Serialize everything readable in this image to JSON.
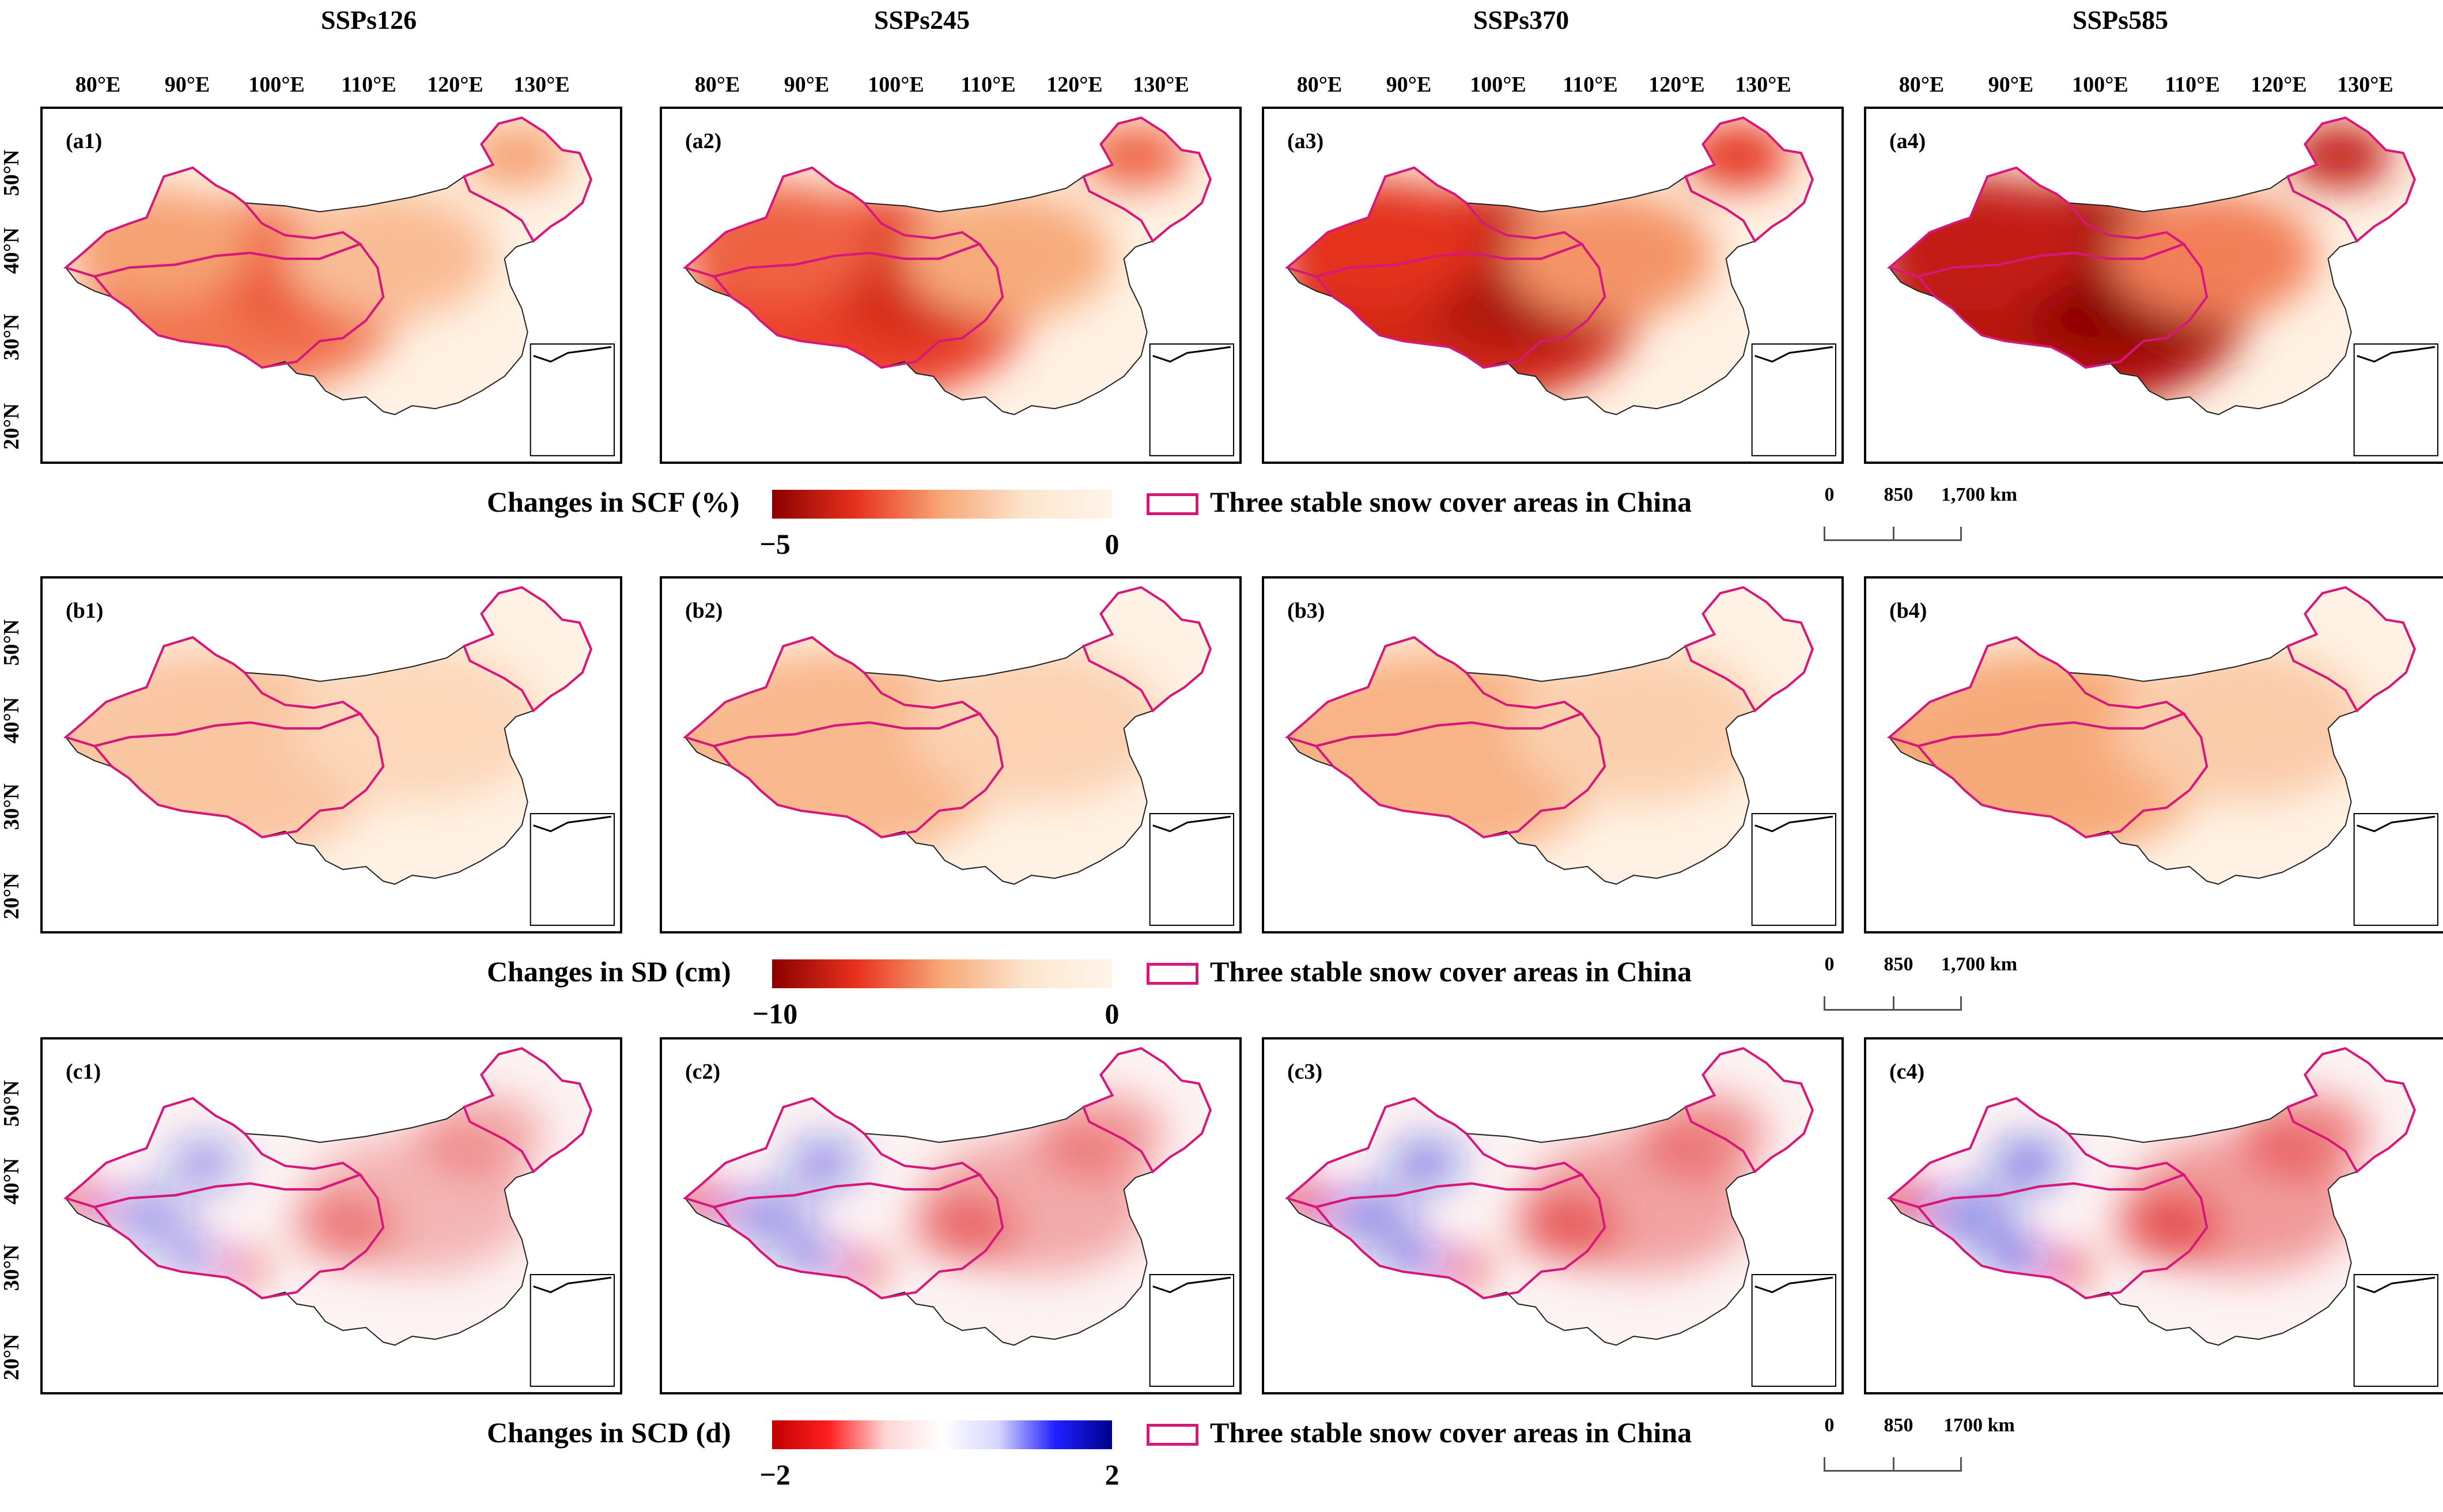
{
  "columns": [
    "SSPs126",
    "SSPs245",
    "SSPs370",
    "SSPs585"
  ],
  "lon_labels": [
    "80°E",
    "90°E",
    "100°E",
    "110°E",
    "120°E",
    "130°E"
  ],
  "lat_labels": [
    "50°N",
    "40°N",
    "30°N",
    "20°N"
  ],
  "rows": [
    {
      "variable": "SCF",
      "panels": [
        {
          "label": "(a1)",
          "intensity": 0.25
        },
        {
          "label": "(a2)",
          "intensity": 0.55
        },
        {
          "label": "(a3)",
          "intensity": 0.8
        },
        {
          "label": "(a4)",
          "intensity": 1.0
        }
      ],
      "colorbar": {
        "title": "Changes in SCF (%)",
        "min": "−5",
        "max": "0",
        "colors": [
          "#8b0000",
          "#e8321e",
          "#f7a877",
          "#fde6cf",
          "#fff5ea"
        ]
      },
      "legend": "Three stable snow cover areas in China",
      "scalebar": [
        "0",
        "850",
        "1,700 km"
      ]
    },
    {
      "variable": "SD",
      "panels": [
        {
          "label": "(b1)",
          "intensity": 0.3
        },
        {
          "label": "(b2)",
          "intensity": 0.6
        },
        {
          "label": "(b3)",
          "intensity": 0.7
        },
        {
          "label": "(b4)",
          "intensity": 0.9
        }
      ],
      "colorbar": {
        "title": "Changes in SD (cm)",
        "min": "−10",
        "max": "0",
        "colors": [
          "#8b0000",
          "#e8321e",
          "#f7a877",
          "#fde6cf",
          "#fff5ea"
        ]
      },
      "legend": "Three stable snow cover areas in China",
      "scalebar": [
        "0",
        "850",
        "1,700 km"
      ]
    },
    {
      "variable": "SCD",
      "panels": [
        {
          "label": "(c1)",
          "intensity": 0.3
        },
        {
          "label": "(c2)",
          "intensity": 0.5
        },
        {
          "label": "(c3)",
          "intensity": 0.65
        },
        {
          "label": "(c4)",
          "intensity": 0.8
        }
      ],
      "colorbar": {
        "title": "Changes in SCD (d)",
        "min": "−2",
        "max": "2",
        "colors": [
          "#c00000",
          "#ff2020",
          "#ffd6d6",
          "#ffffff",
          "#d6d6ff",
          "#2020ff",
          "#00008b"
        ]
      },
      "legend": "Three stable snow cover areas in China",
      "scalebar": [
        "0",
        "850",
        "1700 km"
      ]
    }
  ],
  "colors": {
    "boundary": "#d6187a",
    "frame": "#000000"
  }
}
